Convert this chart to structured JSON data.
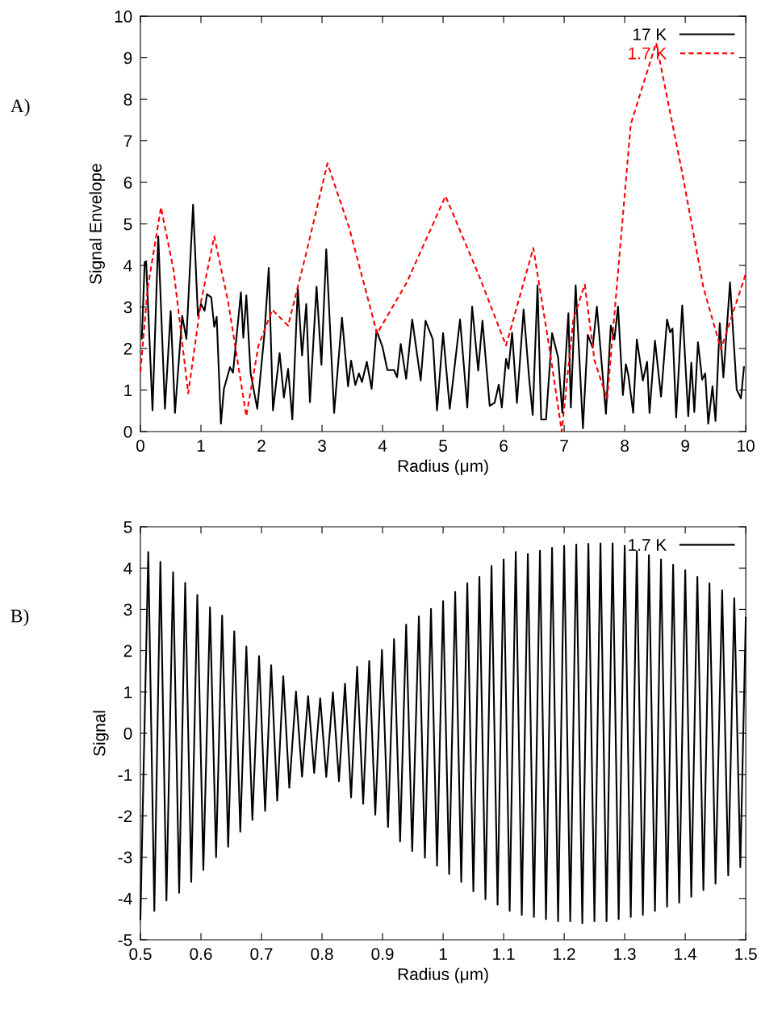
{
  "chart_data": [
    {
      "type": "line",
      "xlabel": "Radius (μm)",
      "ylabel": "Signal Envelope",
      "annotations": [
        "A)"
      ],
      "xlim": [
        0,
        10
      ],
      "ylim": [
        0,
        10
      ],
      "xticks": [
        0,
        1,
        2,
        3,
        4,
        5,
        6,
        7,
        8,
        9,
        10
      ],
      "yticks": [
        0,
        1,
        2,
        3,
        4,
        5,
        6,
        7,
        8,
        9,
        10
      ],
      "legend": "top right",
      "series": [
        {
          "name": "17 K",
          "color": "#000000",
          "line_style": "solid",
          "x": [
            0.024,
            0.071,
            0.095,
            0.2,
            0.295,
            0.405,
            0.5,
            0.571,
            0.69,
            0.76,
            0.87,
            0.95,
            1.0,
            1.06,
            1.1,
            1.17,
            1.22,
            1.26,
            1.33,
            1.38,
            1.48,
            1.53,
            1.66,
            1.7,
            1.75,
            1.82,
            1.93,
            2.05,
            2.12,
            2.19,
            2.3,
            2.37,
            2.44,
            2.51,
            2.6,
            2.67,
            2.74,
            2.8,
            2.91,
            2.99,
            3.07,
            3.2,
            3.33,
            3.43,
            3.48,
            3.55,
            3.61,
            3.66,
            3.74,
            3.82,
            3.9,
            4.0,
            4.08,
            4.19,
            4.24,
            4.3,
            4.39,
            4.49,
            4.63,
            4.71,
            4.83,
            4.9,
            5.0,
            5.11,
            5.28,
            5.4,
            5.48,
            5.58,
            5.65,
            5.77,
            5.85,
            5.92,
            5.97,
            6.04,
            6.08,
            6.14,
            6.22,
            6.33,
            6.42,
            6.48,
            6.56,
            6.62,
            6.7,
            6.8,
            6.9,
            6.97,
            7.07,
            7.11,
            7.19,
            7.31,
            7.39,
            7.47,
            7.54,
            7.69,
            7.77,
            7.83,
            7.89,
            7.97,
            8.02,
            8.06,
            8.14,
            8.2,
            8.3,
            8.37,
            8.41,
            8.5,
            8.6,
            8.7,
            8.75,
            8.79,
            8.85,
            8.95,
            9.05,
            9.1,
            9.15,
            9.21,
            9.28,
            9.33,
            9.38,
            9.45,
            9.5,
            9.57,
            9.63,
            9.74,
            9.85,
            9.92,
            9.97
          ],
          "values": [
            2.24,
            4.08,
            4.1,
            0.51,
            4.7,
            0.55,
            2.9,
            0.45,
            2.79,
            2.23,
            5.46,
            2.79,
            3.07,
            2.91,
            3.31,
            3.23,
            2.52,
            2.76,
            0.19,
            1.03,
            1.55,
            1.42,
            3.35,
            2.26,
            3.28,
            1.41,
            0.55,
            2.37,
            3.94,
            0.51,
            1.89,
            0.82,
            1.51,
            0.29,
            3.45,
            1.83,
            3.07,
            0.71,
            3.49,
            1.61,
            4.39,
            0.45,
            2.74,
            1.09,
            1.71,
            1.12,
            1.4,
            1.19,
            1.68,
            1.03,
            2.44,
            2.03,
            1.48,
            1.48,
            1.31,
            2.11,
            1.27,
            2.7,
            1.23,
            2.67,
            2.22,
            0.51,
            2.37,
            0.55,
            2.7,
            0.58,
            3.01,
            1.47,
            2.67,
            0.62,
            0.69,
            1.13,
            0.58,
            1.75,
            1.51,
            2.38,
            0.69,
            2.94,
            1.3,
            0.4,
            3.52,
            0.29,
            0.29,
            2.37,
            1.78,
            0.45,
            2.85,
            0.58,
            3.52,
            0.08,
            2.33,
            2.02,
            3.01,
            0.43,
            2.55,
            2.22,
            3.01,
            0.88,
            1.62,
            1.36,
            0.45,
            2.22,
            1.23,
            1.68,
            0.45,
            2.19,
            0.84,
            2.7,
            2.39,
            2.48,
            0.34,
            3.04,
            0.37,
            1.66,
            0.47,
            2.15,
            1.25,
            1.4,
            0.19,
            1.09,
            0.26,
            2.61,
            1.3,
            3.59,
            1.01,
            0.8,
            1.55
          ]
        },
        {
          "name": "1.7 K",
          "color": "#ff0000",
          "line_style": "dashed",
          "x": [
            0,
            0.12,
            0.34,
            0.55,
            0.79,
            1.0,
            1.22,
            1.45,
            1.75,
            1.95,
            2.18,
            2.44,
            2.75,
            3.09,
            3.45,
            3.91,
            4.4,
            5.04,
            5.6,
            6.04,
            6.49,
            6.75,
            6.96,
            7.15,
            7.34,
            7.5,
            7.71,
            8.1,
            8.52,
            8.95,
            9.3,
            9.59,
            10
          ],
          "values": [
            1.44,
            3.45,
            5.4,
            3.87,
            0.92,
            3.12,
            4.7,
            3.12,
            0.37,
            2.07,
            2.93,
            2.55,
            4.36,
            6.46,
            4.9,
            2.36,
            3.59,
            5.67,
            3.73,
            2.07,
            4.42,
            2.07,
            0.0,
            2.69,
            3.54,
            1.72,
            0.78,
            7.4,
            9.36,
            6.23,
            3.47,
            1.98,
            3.8
          ]
        }
      ]
    },
    {
      "type": "line",
      "xlabel": "Radius (μm)",
      "ylabel": "Signal",
      "annotations": [
        "B)"
      ],
      "xlim": [
        0.5,
        1.5
      ],
      "ylim": [
        -5,
        5
      ],
      "xticks": [
        0.5,
        0.6,
        0.7,
        0.8,
        0.9,
        1,
        1.1,
        1.2,
        1.3,
        1.4,
        1.5
      ],
      "yticks": [
        -5,
        -4,
        -3,
        -2,
        -1,
        0,
        1,
        2,
        3,
        4,
        5
      ],
      "legend": "top right",
      "series": [
        {
          "name": "1.7 K",
          "color": "#000000",
          "line_style": "solid",
          "x": [
            0.5,
            0.513,
            0.523,
            0.533,
            0.543,
            0.554,
            0.564,
            0.574,
            0.584,
            0.594,
            0.604,
            0.615,
            0.625,
            0.635,
            0.645,
            0.655,
            0.665,
            0.675,
            0.685,
            0.696,
            0.706,
            0.716,
            0.726,
            0.736,
            0.746,
            0.757,
            0.767,
            0.777,
            0.787,
            0.797,
            0.807,
            0.818,
            0.828,
            0.838,
            0.848,
            0.858,
            0.868,
            0.878,
            0.888,
            0.899,
            0.909,
            0.919,
            0.929,
            0.939,
            0.949,
            0.96,
            0.97,
            0.98,
            0.99,
            1.0,
            1.01,
            1.02,
            1.03,
            1.04,
            1.05,
            1.06,
            1.07,
            1.08,
            1.09,
            1.1,
            1.11,
            1.12,
            1.13,
            1.14,
            1.15,
            1.16,
            1.17,
            1.18,
            1.19,
            1.2,
            1.21,
            1.22,
            1.23,
            1.24,
            1.25,
            1.26,
            1.27,
            1.28,
            1.29,
            1.3,
            1.31,
            1.32,
            1.33,
            1.34,
            1.35,
            1.36,
            1.37,
            1.38,
            1.39,
            1.4,
            1.41,
            1.42,
            1.43,
            1.44,
            1.45,
            1.461,
            1.471,
            1.481,
            1.491,
            1.5
          ],
          "values": [
            -4.5,
            4.39,
            -4.3,
            4.15,
            -4.05,
            3.9,
            -3.86,
            3.64,
            -3.6,
            3.35,
            -3.31,
            3.05,
            -3.0,
            2.85,
            -2.75,
            2.47,
            -2.38,
            2.1,
            -2.1,
            1.87,
            -1.88,
            1.65,
            -1.63,
            1.38,
            -1.32,
            1.01,
            -1.05,
            0.9,
            -0.96,
            0.85,
            -1.06,
            0.99,
            -1.16,
            1.2,
            -1.55,
            1.61,
            -1.71,
            1.75,
            -1.97,
            2.02,
            -2.27,
            2.28,
            -2.62,
            2.63,
            -2.85,
            2.83,
            -3.01,
            3.01,
            -3.21,
            3.2,
            -3.41,
            3.42,
            -3.6,
            3.63,
            -3.83,
            3.79,
            -4.02,
            4.05,
            -4.15,
            4.21,
            -4.3,
            4.39,
            -4.4,
            4.34,
            -4.45,
            4.42,
            -4.5,
            4.49,
            -4.55,
            4.54,
            -4.55,
            4.57,
            -4.6,
            4.59,
            -4.55,
            4.6,
            -4.55,
            4.6,
            -4.5,
            4.54,
            -4.45,
            4.41,
            -4.4,
            4.31,
            -4.3,
            4.21,
            -4.2,
            4.08,
            -4.1,
            3.95,
            -3.96,
            3.79,
            -3.8,
            3.63,
            -3.64,
            3.46,
            -3.44,
            3.27,
            -3.24,
            2.8
          ]
        }
      ]
    }
  ]
}
